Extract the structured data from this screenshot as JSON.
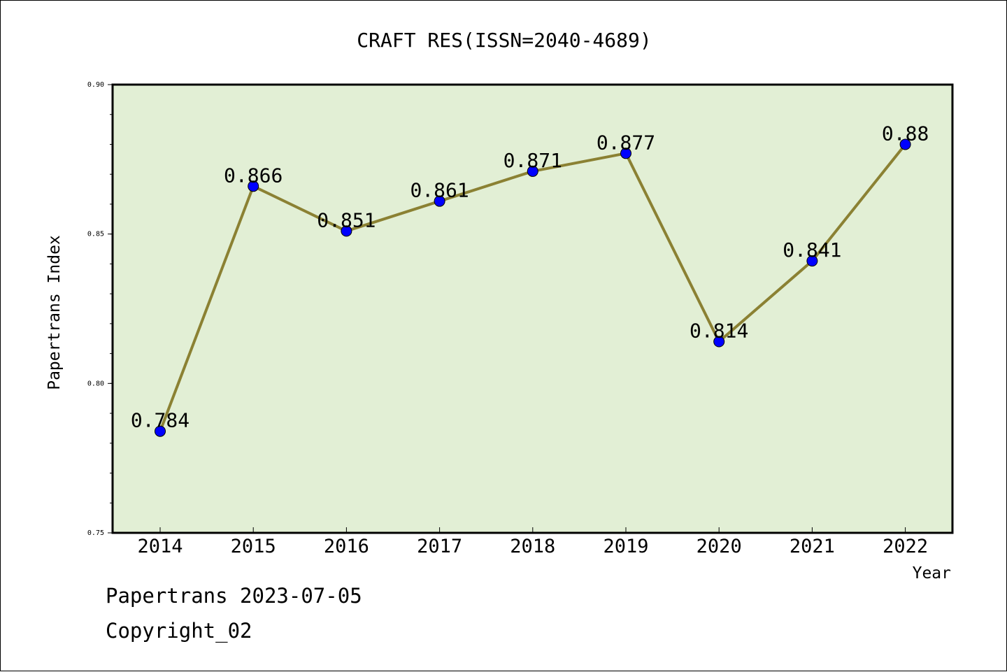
{
  "chart_data": {
    "type": "line",
    "title": "CRAFT RES(ISSN=2040-4689)",
    "xlabel": "Year",
    "ylabel": "Papertrans Index",
    "categories": [
      "2014",
      "2015",
      "2016",
      "2017",
      "2018",
      "2019",
      "2020",
      "2021",
      "2022"
    ],
    "series": [
      {
        "values": [
          0.784,
          0.866,
          0.851,
          0.861,
          0.871,
          0.877,
          0.814,
          0.841,
          0.88
        ]
      }
    ],
    "data_labels": [
      "0.784",
      "0.866",
      "0.851",
      "0.861",
      "0.871",
      "0.877",
      "0.814",
      "0.841",
      "0.88"
    ],
    "ylim": [
      0.75,
      0.9
    ],
    "yticks": [
      "0.75",
      "0.80",
      "0.85",
      "0.90"
    ],
    "grid": false,
    "colors": {
      "plot_background": "#e2efd5",
      "line": "#8b8133",
      "marker": "#0000ff"
    }
  },
  "footer": {
    "line1": "Papertrans 2023-07-05",
    "line2": "Copyright_02"
  }
}
